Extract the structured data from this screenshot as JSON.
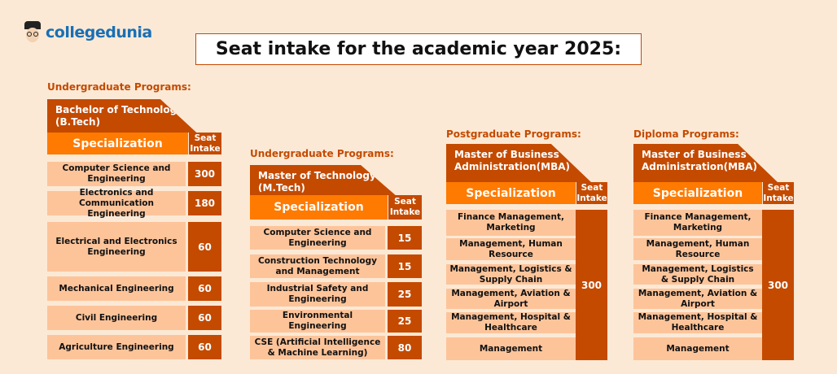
{
  "logo": {
    "text": "collegedunia"
  },
  "title": "Seat intake for the academic year 2025:",
  "colors": {
    "background": "#fbe9d5",
    "dark_orange": "#c44a00",
    "orange": "#ff7a00",
    "row": "#fdc49a"
  },
  "tables": [
    {
      "section": "Undergraduate Programs:",
      "program": "Bachelor of Technology (B.Tech)",
      "spec_label": "Specialization",
      "seat_label": "Seat Intake",
      "rows": [
        {
          "name": "Computer Science and Engineering",
          "seats": "300"
        },
        {
          "name": "Electronics and Communication Engineering",
          "seats": "180"
        },
        {
          "name": "Electrical and Electronics Engineering",
          "seats": "60"
        },
        {
          "name": "Mechanical Engineering",
          "seats": "60"
        },
        {
          "name": "Civil Engineering",
          "seats": "60"
        },
        {
          "name": "Agriculture Engineering",
          "seats": "60"
        }
      ]
    },
    {
      "section": "Undergraduate Programs:",
      "program": "Master of Technology (M.Tech)",
      "spec_label": "Specialization",
      "seat_label": "Seat Intake",
      "rows": [
        {
          "name": "Computer Science and Engineering",
          "seats": "15"
        },
        {
          "name": "Construction Technology and Management",
          "seats": "15"
        },
        {
          "name": "Industrial Safety and Engineering",
          "seats": "25"
        },
        {
          "name": "Environmental Engineering",
          "seats": "25"
        },
        {
          "name": "CSE (Artificial Intelligence & Machine Learning)",
          "seats": "80"
        }
      ]
    },
    {
      "section": "Postgraduate Programs:",
      "program": "Master of Business Administration(MBA)",
      "spec_label": "Specialization",
      "seat_label": "Seat Intake",
      "seats": "300",
      "rows": [
        {
          "name": "Finance Management, Marketing"
        },
        {
          "name": "Management, Human Resource"
        },
        {
          "name": "Management, Logistics & Supply Chain"
        },
        {
          "name": "Management, Aviation & Airport"
        },
        {
          "name": "Management, Hospital & Healthcare"
        },
        {
          "name": "Management"
        }
      ]
    },
    {
      "section": "Diploma Programs:",
      "program": "Master of Business Administration(MBA)",
      "spec_label": "Specialization",
      "seat_label": "Seat Intake",
      "seats": "300",
      "rows": [
        {
          "name": "Finance Management, Marketing"
        },
        {
          "name": "Management, Human Resource"
        },
        {
          "name": "Management, Logistics & Supply Chain"
        },
        {
          "name": "Management, Aviation & Airport"
        },
        {
          "name": "Management, Hospital & Healthcare"
        },
        {
          "name": "Management"
        }
      ]
    }
  ]
}
